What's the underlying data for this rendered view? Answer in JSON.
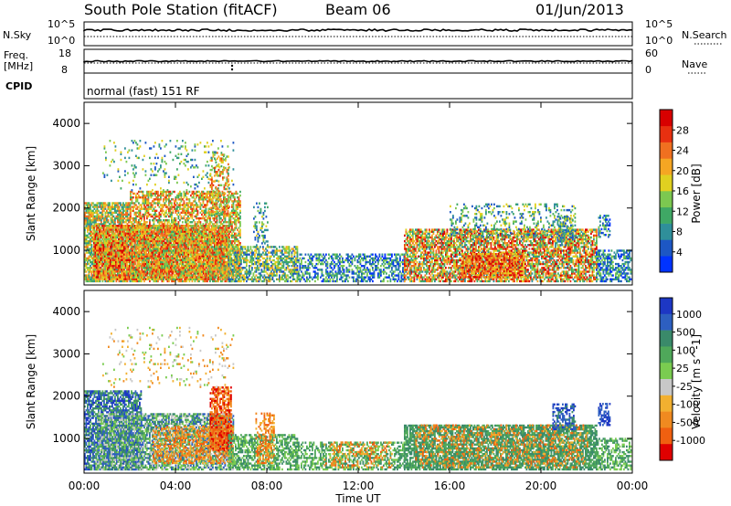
{
  "header": {
    "station": "South Pole Station (fitACF)",
    "beam": "Beam 06",
    "date": "01/Jun/2013"
  },
  "status_panel": {
    "nsky_label": "N.Sky",
    "nsky_ticks": [
      "10^5",
      "10^0"
    ],
    "freq_label_1": "Freq.",
    "freq_label_2": "[MHz]",
    "freq_ticks": [
      "18",
      "8"
    ],
    "cpid_label": "CPID",
    "nsearch_label": "N.Search",
    "nsearch_ticks": [
      "10^5",
      "10^0"
    ],
    "nave_label": "Nave",
    "nave_ticks": [
      "60",
      "0"
    ],
    "cpid_text": "normal (fast) 151 RF"
  },
  "time_axis": {
    "label": "Time UT",
    "ticks": [
      "00:00",
      "04:00",
      "08:00",
      "12:00",
      "16:00",
      "20:00",
      "00:00"
    ]
  },
  "chart_data": [
    {
      "type": "heatmap",
      "title": "",
      "xlabel": "Time UT",
      "ylabel": "Slant Range [km]",
      "xlim_hours": [
        0,
        24
      ],
      "ylim_km": [
        180,
        4500
      ],
      "y_ticks": [
        "1000",
        "2000",
        "3000",
        "4000"
      ],
      "colorbar": {
        "label": "Power [dB]",
        "ticks": [
          "4",
          "8",
          "12",
          "16",
          "20",
          "24",
          "28"
        ],
        "colors": [
          "#0033ff",
          "#1d57c4",
          "#2f8f9a",
          "#3fa865",
          "#7cc850",
          "#e0d020",
          "#f5a623",
          "#f07020",
          "#e83010",
          "#d80000"
        ]
      },
      "regions": [
        {
          "t0": 0.0,
          "t1": 2.0,
          "r0": 250,
          "r1": 2100,
          "level": [
            2,
            7
          ],
          "density": 0.78
        },
        {
          "t0": 0.4,
          "t1": 6.3,
          "r0": 300,
          "r1": 1600,
          "level": [
            4,
            9
          ],
          "density": 0.85
        },
        {
          "t0": 2.0,
          "t1": 6.8,
          "r0": 250,
          "r1": 2400,
          "level": [
            3,
            8
          ],
          "density": 0.6
        },
        {
          "t0": 0.8,
          "t1": 6.5,
          "r0": 2400,
          "r1": 3600,
          "level": [
            1,
            5
          ],
          "density": 0.09
        },
        {
          "t0": 5.5,
          "t1": 6.3,
          "r0": 1800,
          "r1": 3300,
          "level": [
            3,
            8
          ],
          "density": 0.35
        },
        {
          "t0": 6.3,
          "t1": 9.3,
          "r0": 250,
          "r1": 1100,
          "level": [
            1,
            6
          ],
          "density": 0.62
        },
        {
          "t0": 7.4,
          "t1": 8.0,
          "r0": 1100,
          "r1": 2100,
          "level": [
            1,
            5
          ],
          "density": 0.3
        },
        {
          "t0": 9.3,
          "t1": 14.0,
          "r0": 250,
          "r1": 900,
          "level": [
            0,
            4
          ],
          "density": 0.5
        },
        {
          "t0": 14.0,
          "t1": 22.4,
          "r0": 250,
          "r1": 1500,
          "level": [
            2,
            9
          ],
          "density": 0.7
        },
        {
          "t0": 16.5,
          "t1": 19.2,
          "r0": 350,
          "r1": 900,
          "level": [
            5,
            9
          ],
          "density": 0.75
        },
        {
          "t0": 16.0,
          "t1": 21.5,
          "r0": 1300,
          "r1": 2100,
          "level": [
            1,
            5
          ],
          "density": 0.25
        },
        {
          "t0": 20.7,
          "t1": 21.4,
          "r0": 1100,
          "r1": 1800,
          "level": [
            1,
            5
          ],
          "density": 0.5
        },
        {
          "t0": 22.4,
          "t1": 23.9,
          "r0": 250,
          "r1": 1000,
          "level": [
            0,
            4
          ],
          "density": 0.55
        },
        {
          "t0": 22.5,
          "t1": 23.0,
          "r0": 1300,
          "r1": 1800,
          "level": [
            0,
            4
          ],
          "density": 0.5
        }
      ]
    },
    {
      "type": "heatmap",
      "title": "",
      "xlabel": "Time UT",
      "ylabel": "Slant Range [km]",
      "xlim_hours": [
        0,
        24
      ],
      "ylim_km": [
        180,
        4500
      ],
      "y_ticks": [
        "1000",
        "2000",
        "3000",
        "4000"
      ],
      "colorbar": {
        "label": "Velocity [m s^-1]",
        "ticks": [
          "1000",
          "500",
          "100",
          "25",
          "-25",
          "-100",
          "-500",
          "-1000"
        ],
        "colors": [
          "#1d37c4",
          "#2d5fc0",
          "#3a8a6a",
          "#4fa85a",
          "#7acc50",
          "#c8c8c8",
          "#f2b030",
          "#f08a20",
          "#f06010",
          "#e00000"
        ]
      },
      "regions": [
        {
          "t0": 0.0,
          "t1": 2.5,
          "r0": 250,
          "r1": 2100,
          "level": [
            0,
            3
          ],
          "density": 0.7
        },
        {
          "t0": 0.5,
          "t1": 6.5,
          "r0": 250,
          "r1": 1600,
          "level": [
            1,
            5
          ],
          "density": 0.7
        },
        {
          "t0": 3.0,
          "t1": 6.5,
          "r0": 400,
          "r1": 1300,
          "level": [
            6,
            8
          ],
          "density": 0.45
        },
        {
          "t0": 5.5,
          "t1": 6.4,
          "r0": 700,
          "r1": 2200,
          "level": [
            7,
            9
          ],
          "density": 0.7
        },
        {
          "t0": 0.8,
          "t1": 6.5,
          "r0": 2200,
          "r1": 3600,
          "level": [
            4,
            7
          ],
          "density": 0.08
        },
        {
          "t0": 6.3,
          "t1": 9.3,
          "r0": 250,
          "r1": 1100,
          "level": [
            2,
            4
          ],
          "density": 0.6
        },
        {
          "t0": 7.5,
          "t1": 8.3,
          "r0": 400,
          "r1": 1600,
          "level": [
            6,
            8
          ],
          "density": 0.4
        },
        {
          "t0": 9.3,
          "t1": 14.0,
          "r0": 250,
          "r1": 900,
          "level": [
            2,
            4
          ],
          "density": 0.5
        },
        {
          "t0": 10.5,
          "t1": 13.5,
          "r0": 300,
          "r1": 900,
          "level": [
            6,
            8
          ],
          "density": 0.25
        },
        {
          "t0": 14.0,
          "t1": 22.4,
          "r0": 250,
          "r1": 1300,
          "level": [
            2,
            3
          ],
          "density": 0.75
        },
        {
          "t0": 14.5,
          "t1": 22.0,
          "r0": 300,
          "r1": 1300,
          "level": [
            6,
            8
          ],
          "density": 0.22
        },
        {
          "t0": 20.5,
          "t1": 21.5,
          "r0": 1200,
          "r1": 1800,
          "level": [
            0,
            2
          ],
          "density": 0.5
        },
        {
          "t0": 22.4,
          "t1": 23.9,
          "r0": 250,
          "r1": 1000,
          "level": [
            2,
            4
          ],
          "density": 0.55
        },
        {
          "t0": 22.5,
          "t1": 23.0,
          "r0": 1300,
          "r1": 1800,
          "level": [
            0,
            1
          ],
          "density": 0.55
        }
      ]
    }
  ],
  "colors": {
    "data_line": "#000000"
  }
}
